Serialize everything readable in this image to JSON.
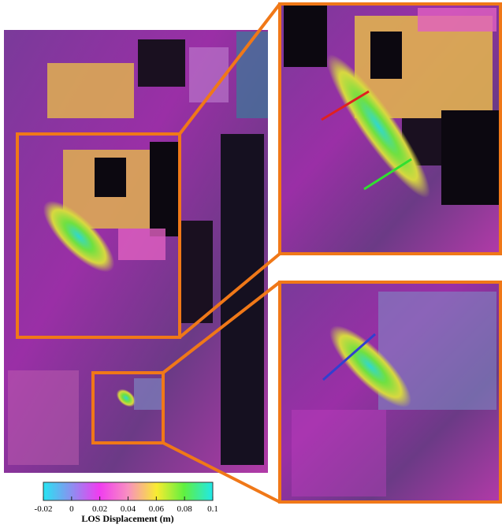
{
  "colorbar": {
    "label": "LOS Displacement (m)",
    "lim": [
      -0.02,
      0.1
    ],
    "ticks": [
      -0.02,
      0,
      0.02,
      0.04,
      0.06,
      0.08,
      0.1
    ]
  }
}
